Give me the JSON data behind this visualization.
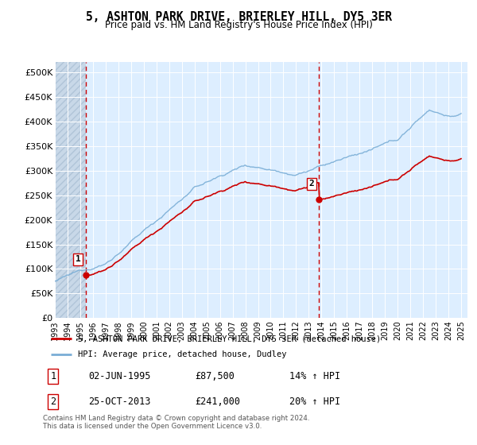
{
  "title": "5, ASHTON PARK DRIVE, BRIERLEY HILL, DY5 3ER",
  "subtitle": "Price paid vs. HM Land Registry's House Price Index (HPI)",
  "ylabel_ticks": [
    "£0",
    "£50K",
    "£100K",
    "£150K",
    "£200K",
    "£250K",
    "£300K",
    "£350K",
    "£400K",
    "£450K",
    "£500K"
  ],
  "ytick_values": [
    0,
    50000,
    100000,
    150000,
    200000,
    250000,
    300000,
    350000,
    400000,
    450000,
    500000
  ],
  "ylim": [
    0,
    520000
  ],
  "xlim_start": 1993.0,
  "xlim_end": 2025.5,
  "sale1_x": 1995.42,
  "sale1_y": 87500,
  "sale2_x": 2013.81,
  "sale2_y": 241000,
  "sale1_label": "1",
  "sale2_label": "2",
  "marker_color": "#cc0000",
  "vline_color": "#cc0000",
  "legend_line1": "5, ASHTON PARK DRIVE, BRIERLEY HILL, DY5 3ER (detached house)",
  "legend_line2": "HPI: Average price, detached house, Dudley",
  "table_row1": [
    "1",
    "02-JUN-1995",
    "£87,500",
    "14% ↑ HPI"
  ],
  "table_row2": [
    "2",
    "25-OCT-2013",
    "£241,000",
    "20% ↑ HPI"
  ],
  "footnote": "Contains HM Land Registry data © Crown copyright and database right 2024.\nThis data is licensed under the Open Government Licence v3.0.",
  "hpi_color": "#7aaed6",
  "price_color": "#cc0000",
  "bg_color": "#ddeeff",
  "hatch_color": "#c8d8e8",
  "grid_color": "#ffffff",
  "xtick_years": [
    1993,
    1994,
    1995,
    1996,
    1997,
    1998,
    1999,
    2000,
    2001,
    2002,
    2003,
    2004,
    2005,
    2006,
    2007,
    2008,
    2009,
    2010,
    2011,
    2012,
    2013,
    2014,
    2015,
    2016,
    2017,
    2018,
    2019,
    2020,
    2021,
    2022,
    2023,
    2024,
    2025
  ]
}
